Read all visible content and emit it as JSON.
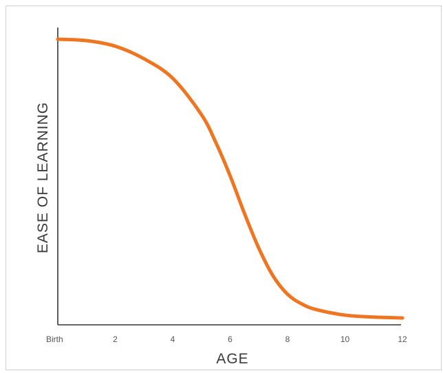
{
  "chart_data": {
    "type": "line",
    "title": "",
    "xlabel": "AGE",
    "ylabel": "EASE OF LEARNING",
    "x_tick_labels": [
      "Birth",
      "2",
      "4",
      "6",
      "8",
      "10",
      "12"
    ],
    "x_tick_values": [
      0,
      2,
      4,
      6,
      8,
      10,
      12
    ],
    "xlim": [
      0,
      12
    ],
    "ylim": [
      0,
      100
    ],
    "y_ticks_shown": false,
    "grid": false,
    "legend": "none",
    "series": [
      {
        "color": "#ee7623",
        "x": [
          0,
          1,
          2,
          3,
          4,
          5,
          5.5,
          6,
          6.5,
          7,
          7.5,
          8,
          8.5,
          9,
          10,
          11,
          12
        ],
        "y": [
          100,
          99.5,
          97.5,
          93,
          86,
          73,
          63,
          51,
          37.5,
          25,
          15,
          8.5,
          5,
          3,
          1,
          0.3,
          0
        ]
      }
    ]
  }
}
